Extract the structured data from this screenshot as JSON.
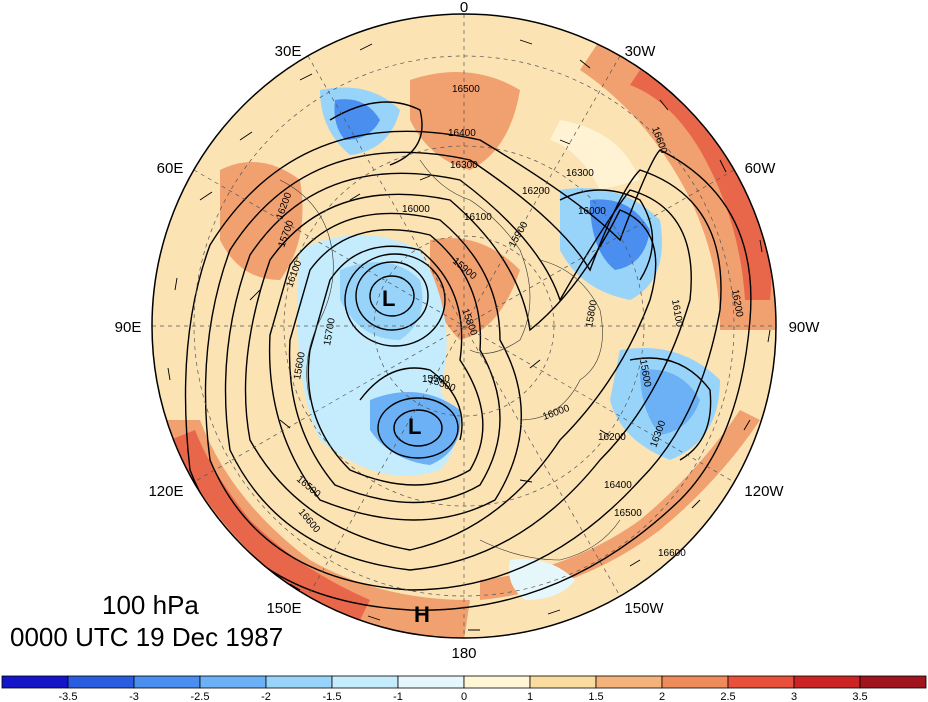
{
  "caption": {
    "level": "100 hPa",
    "time": "0000 UTC 19 Dec 1987"
  },
  "map": {
    "projection": "north-polar-stereographic",
    "longitude_labels": {
      "top": "0",
      "upper_left": "30E",
      "upper_right": "30W",
      "left_upper": "60E",
      "right_upper": "60W",
      "left": "90E",
      "right": "90W",
      "left_lower": "120E",
      "right_lower": "120W",
      "lower_left": "150E",
      "lower_right": "150W",
      "bottom": "180"
    },
    "pressure_centers": {
      "low_1": "L",
      "low_2": "L",
      "high_1": "H"
    },
    "contour_labels": [
      "16600",
      "16500",
      "16400",
      "16300",
      "16200",
      "16100",
      "16000",
      "15900",
      "15800",
      "15700",
      "15600",
      "15500",
      "16000",
      "16300",
      "16200",
      "16100",
      "16000",
      "15900",
      "15800",
      "15700",
      "15600",
      "15500",
      "16400",
      "16500",
      "16600",
      "16300",
      "16200",
      "16100",
      "16200",
      "16500",
      "16600"
    ]
  },
  "colorbar": {
    "tick_labels": [
      "-3.5",
      "-3",
      "-2.5",
      "-2",
      "-1.5",
      "-1",
      "0",
      "1",
      "1.5",
      "2",
      "2.5",
      "3",
      "3.5"
    ],
    "colors": [
      "#1414c8",
      "#2a5ce0",
      "#4a8ef0",
      "#6cb0f6",
      "#98d4fa",
      "#c4ecfc",
      "#e6f7fc",
      "#fff6d6",
      "#fadca0",
      "#f5b27a",
      "#ef8a5a",
      "#e8503c",
      "#cc2424",
      "#a0141e"
    ]
  }
}
